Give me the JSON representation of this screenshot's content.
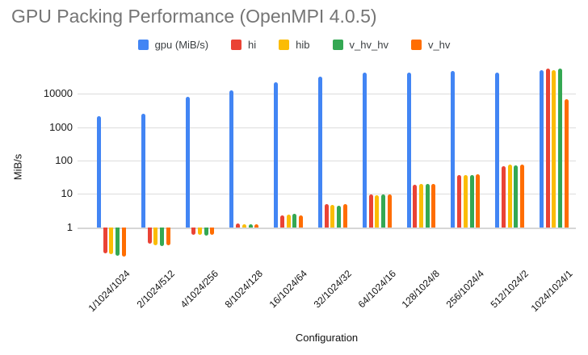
{
  "title": "GPU Packing Performance (OpenMPI 4.0.5)",
  "axes": {
    "y": {
      "title": "MiB/s",
      "ticks": [
        1,
        10,
        100,
        1000,
        10000
      ]
    },
    "x": {
      "title": "Configuration"
    }
  },
  "chart_data": {
    "type": "bar",
    "title": "GPU Packing Performance (OpenMPI 4.0.5)",
    "xlabel": "Configuration",
    "ylabel": "MiB/s",
    "y_scale": "log10",
    "ylim": [
      0.09,
      60000
    ],
    "grid": true,
    "legend_position": "top",
    "categories": [
      "1/1024/1024",
      "2/1024/512",
      "4/1024/256",
      "8/1024/128",
      "16/1024/64",
      "32/1024/32",
      "64/1024/16",
      "128/1024/8",
      "256/1024/4",
      "512/1024/2",
      "1024/1024/1"
    ],
    "series": [
      {
        "name": "gpu (MiB/s)",
        "color": "#4285F4",
        "values": [
          2100,
          2450,
          8200,
          12300,
          22500,
          33000,
          42000,
          43500,
          47500,
          43000,
          51000
        ]
      },
      {
        "name": "hi",
        "color": "#EA4335",
        "values": [
          0.17,
          0.33,
          0.58,
          1.3,
          2.3,
          5.0,
          9.8,
          19,
          36,
          68,
          56000
        ]
      },
      {
        "name": "hib",
        "color": "#FBBC04",
        "values": [
          0.155,
          0.29,
          0.58,
          1.25,
          2.4,
          4.6,
          9.3,
          19.5,
          37.5,
          76,
          51000
        ]
      },
      {
        "name": "v_hv_hv",
        "color": "#34A853",
        "values": [
          0.14,
          0.27,
          0.57,
          1.2,
          2.55,
          4.4,
          9.8,
          19.5,
          37.5,
          72,
          56000
        ]
      },
      {
        "name": "v_hv",
        "color": "#FF6D01",
        "values": [
          0.135,
          0.29,
          0.6,
          1.25,
          2.3,
          4.9,
          9.5,
          19.5,
          39,
          76,
          6700
        ]
      }
    ]
  }
}
